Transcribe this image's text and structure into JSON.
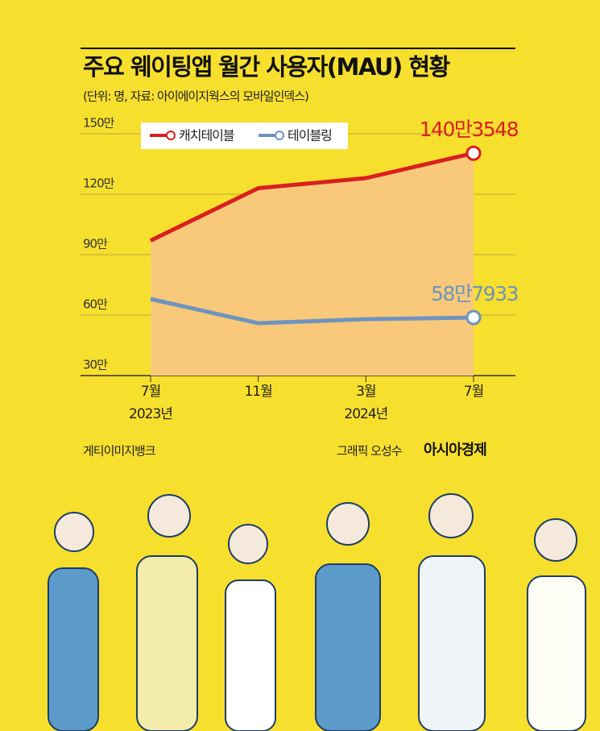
{
  "chart_data": {
    "type": "line",
    "title": "주요 웨이팅앱 월간 사용자(MAU) 현황",
    "subtitle": "(단위: 명, 자료: 아이에이지웍스의 모바일인덱스)",
    "categories": [
      "7월",
      "11월",
      "3월",
      "7월"
    ],
    "category_years": [
      "2023년",
      null,
      "2024년",
      null
    ],
    "series": [
      {
        "name": "캐치테이블",
        "color": "#d9201f",
        "values": [
          97,
          123,
          128,
          140.3548
        ],
        "value_labels": [
          null,
          null,
          null,
          "140만3548"
        ]
      },
      {
        "name": "테이블링",
        "color": "#6f93be",
        "values": [
          68,
          56,
          58,
          58.7933
        ],
        "value_labels": [
          null,
          null,
          null,
          "58만7933"
        ]
      }
    ],
    "ylim": [
      30,
      150
    ],
    "yticks": [
      {
        "value": 30,
        "label": "30만"
      },
      {
        "value": 60,
        "label": "60만"
      },
      {
        "value": 90,
        "label": "90만"
      },
      {
        "value": 120,
        "label": "120만"
      },
      {
        "value": 150,
        "label": "150만"
      }
    ],
    "grid": true,
    "area_color": "#f8c97a",
    "credits": {
      "photo": "게티이미지뱅크",
      "graphic": "그래픽 오성수",
      "brand": "아시아경제"
    }
  }
}
